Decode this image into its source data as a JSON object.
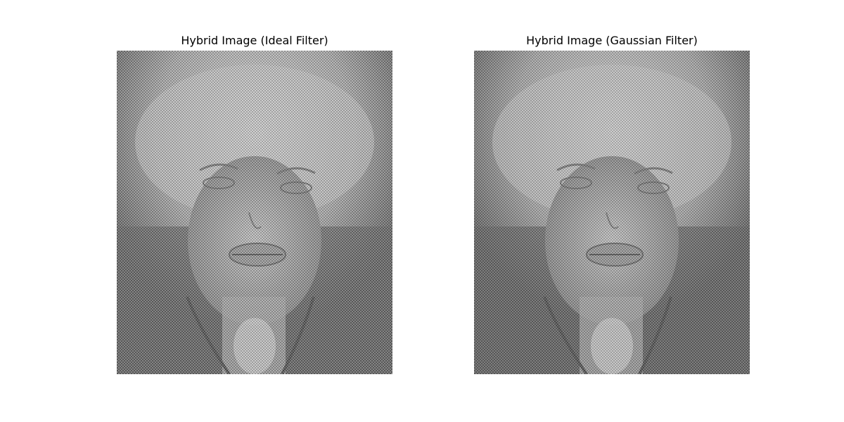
{
  "figure": {
    "panels": [
      {
        "title": "Hybrid Image (Ideal Filter)"
      },
      {
        "title": "Hybrid Image (Gaussian Filter)"
      }
    ]
  }
}
